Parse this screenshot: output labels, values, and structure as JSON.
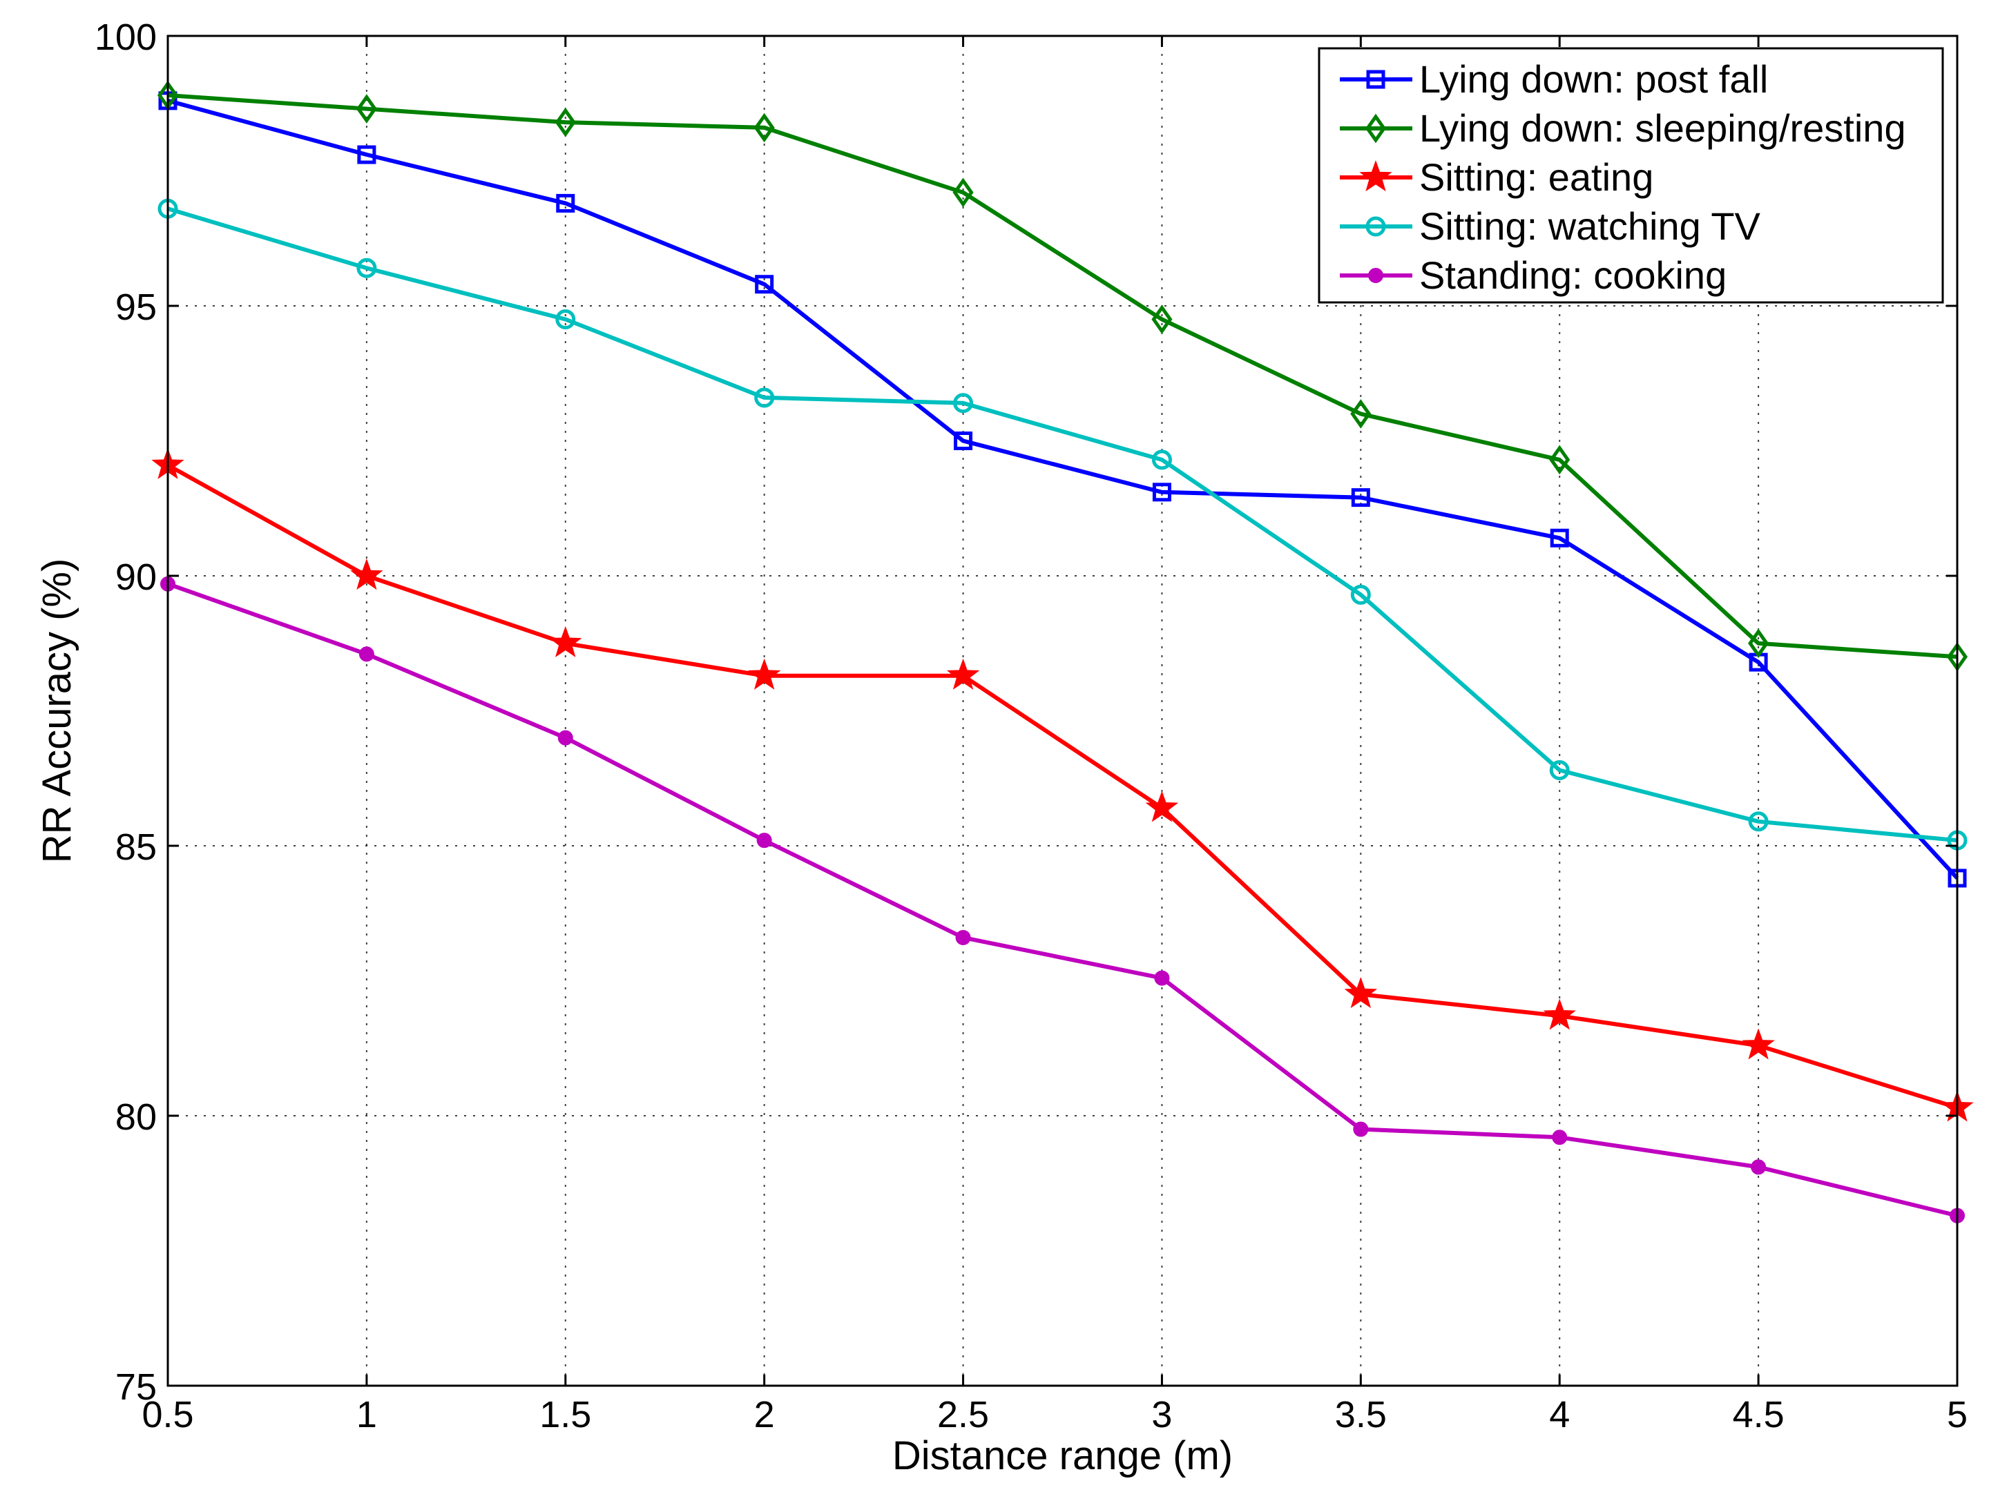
{
  "chart_data": {
    "type": "line",
    "title": "",
    "xlabel": "Distance range (m)",
    "ylabel": "RR Accuracy (%)",
    "xlim": [
      0.5,
      5
    ],
    "ylim": [
      75,
      100
    ],
    "grid": true,
    "legend_position": "top-right",
    "x": [
      0.5,
      1,
      1.5,
      2,
      2.5,
      3,
      3.5,
      4,
      4.5,
      5
    ],
    "xticks": [
      "0.5",
      "1",
      "1.5",
      "2",
      "2.5",
      "3",
      "3.5",
      "4",
      "4.5",
      "5"
    ],
    "yticks": [
      "75",
      "80",
      "85",
      "90",
      "95",
      "100"
    ],
    "series": [
      {
        "name": "Lying down: post fall",
        "color": "#0000ff",
        "marker": "square",
        "values": [
          98.8,
          97.8,
          96.9,
          95.4,
          92.5,
          91.55,
          91.45,
          90.7,
          88.4,
          84.4
        ]
      },
      {
        "name": "Lying down: sleeping/resting",
        "color": "#008000",
        "marker": "diamond",
        "values": [
          98.9,
          98.65,
          98.4,
          98.3,
          97.1,
          94.75,
          93.0,
          92.15,
          88.75,
          88.5
        ]
      },
      {
        "name": "Sitting: eating",
        "color": "#ff0000",
        "marker": "star",
        "values": [
          92.05,
          90.0,
          88.75,
          88.15,
          88.15,
          85.7,
          82.25,
          81.85,
          81.3,
          80.15
        ]
      },
      {
        "name": "Sitting: watching TV",
        "color": "#00bfbf",
        "marker": "circle",
        "values": [
          96.8,
          95.7,
          94.75,
          93.3,
          93.2,
          92.15,
          89.65,
          86.4,
          85.45,
          85.1
        ]
      },
      {
        "name": "Standing: cooking",
        "color": "#bf00bf",
        "marker": "dot",
        "values": [
          89.85,
          88.55,
          87.0,
          85.1,
          83.3,
          82.55,
          79.75,
          79.6,
          79.05,
          78.15
        ]
      }
    ]
  }
}
